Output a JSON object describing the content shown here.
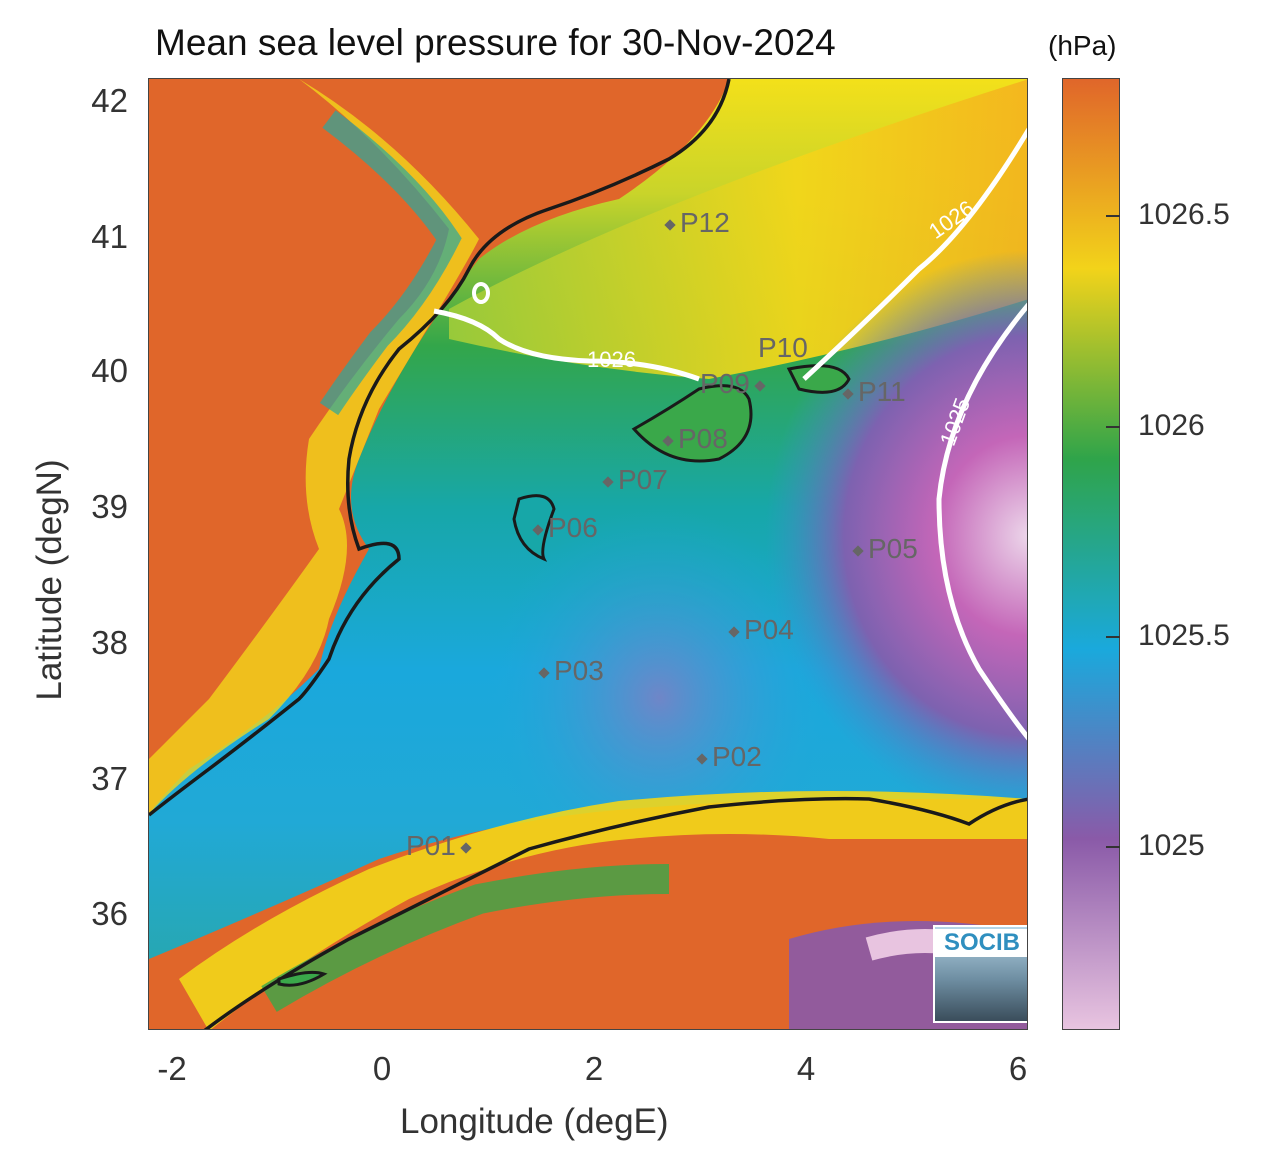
{
  "title": "Mean sea level pressure for 30-Nov-2024",
  "units_label": "(hPa)",
  "axes": {
    "xlabel": "Longitude (degE)",
    "ylabel": "Latitude (degN)",
    "xticks": [
      "-2",
      "0",
      "2",
      "4",
      "6"
    ],
    "yticks": [
      "42",
      "41",
      "40",
      "39",
      "38",
      "37",
      "36"
    ]
  },
  "colorbar": {
    "ticks": [
      "1026.5",
      "1026",
      "1025.5",
      "1025"
    ],
    "colors": [
      "#e0662a",
      "#f2d31a",
      "#2fa44a",
      "#1aa9dc",
      "#8a5aa8",
      "#e8c4e0"
    ]
  },
  "contours": [
    {
      "label": "1026"
    },
    {
      "label": "1026"
    },
    {
      "label": "1025"
    }
  ],
  "points": [
    {
      "name": "P01"
    },
    {
      "name": "P02"
    },
    {
      "name": "P03"
    },
    {
      "name": "P04"
    },
    {
      "name": "P05"
    },
    {
      "name": "P06"
    },
    {
      "name": "P07"
    },
    {
      "name": "P08"
    },
    {
      "name": "P09"
    },
    {
      "name": "P10"
    },
    {
      "name": "P11"
    },
    {
      "name": "P12"
    }
  ],
  "logo": "SOCIB"
}
